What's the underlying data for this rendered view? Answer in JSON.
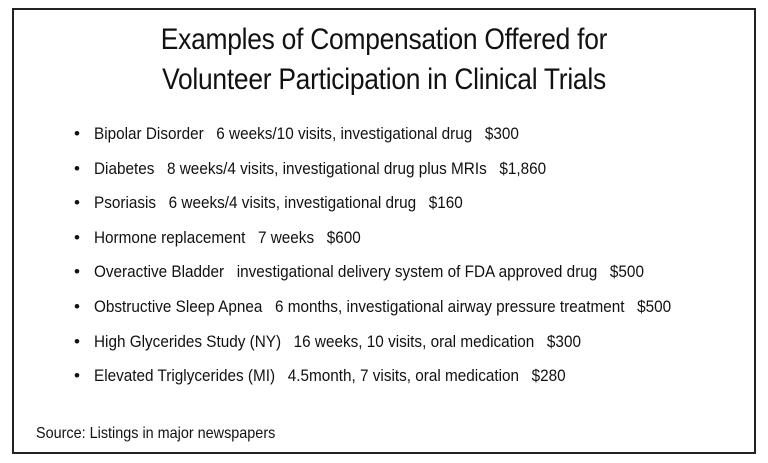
{
  "title": {
    "line1": "Examples of Compensation Offered for",
    "line2": "Volunteer Participation in Clinical Trials"
  },
  "bullet_glyph": "•",
  "items": [
    {
      "condition": "Bipolar Disorder",
      "details": "6 weeks/10 visits, investigational drug",
      "amount": "$300"
    },
    {
      "condition": "Diabetes",
      "details": "8 weeks/4 visits, investigational drug plus MRIs",
      "amount": "$1,860"
    },
    {
      "condition": "Psoriasis",
      "details": "6 weeks/4 visits, investigational drug",
      "amount": "$160"
    },
    {
      "condition": "Hormone replacement",
      "details": "7 weeks",
      "amount": "$600"
    },
    {
      "condition": "Overactive Bladder",
      "details": "investigational delivery system of FDA approved drug",
      "amount": "$500"
    },
    {
      "condition": "Obstructive Sleep Apnea",
      "details": "6 months, investigational airway pressure treatment",
      "amount": "$500"
    },
    {
      "condition": "High Glycerides Study (NY)",
      "details": "16 weeks, 10 visits, oral medication",
      "amount": "$300"
    },
    {
      "condition": "Elevated Triglycerides (MI)",
      "details": "4.5month, 7 visits, oral medication",
      "amount": "$280"
    }
  ],
  "source": "Source: Listings in major newspapers"
}
